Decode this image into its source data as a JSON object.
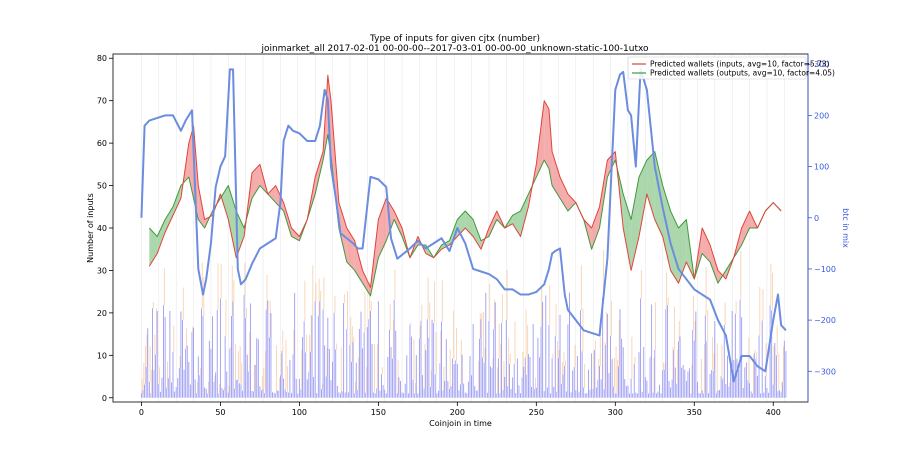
{
  "chart_data": {
    "type": "line",
    "title": "Type of inputs for given cjtx (number)",
    "subtitle": "joinmarket_all 2017-02-01 00-00-00--2017-03-01 00-00-00_unknown-static-100-1utxo",
    "xlabel": "Coinjoin in time",
    "ylabel": "Number of inputs",
    "ylabel_right": "btc in mix",
    "xlim": [
      -18,
      422
    ],
    "ylim": [
      -1,
      81
    ],
    "ylim_right": [
      -360,
      320
    ],
    "xticks": [
      0,
      50,
      100,
      150,
      200,
      250,
      300,
      350,
      400
    ],
    "yticks": [
      0,
      10,
      20,
      30,
      40,
      50,
      60,
      70,
      80
    ],
    "yticks_right": [
      -300,
      -200,
      -100,
      0,
      100,
      200,
      300
    ],
    "legend_position": "top-right",
    "colors": {
      "inputs": "#e0443a",
      "outputs": "#3e9a3e",
      "btc": "#6c8ce0",
      "bars_main": "#7b7bf0",
      "bars_secondary": "#f5c8a0"
    },
    "series": [
      {
        "name": "Predicted wallets (inputs, avg=10, factor=5.73)",
        "kind": "filled-line",
        "x": [
          5,
          10,
          15,
          20,
          25,
          30,
          33,
          36,
          40,
          45,
          50,
          55,
          60,
          65,
          70,
          75,
          80,
          85,
          90,
          95,
          100,
          105,
          110,
          115,
          118,
          120,
          125,
          130,
          135,
          140,
          145,
          150,
          155,
          160,
          165,
          170,
          175,
          180,
          185,
          190,
          195,
          200,
          205,
          210,
          215,
          220,
          225,
          230,
          235,
          240,
          245,
          250,
          255,
          258,
          260,
          265,
          270,
          275,
          280,
          285,
          290,
          295,
          300,
          305,
          310,
          315,
          320,
          325,
          330,
          335,
          340,
          345,
          350,
          355,
          360,
          365,
          370,
          375,
          380,
          385,
          390,
          395,
          400,
          405
        ],
        "y": [
          31,
          34,
          39,
          43,
          47,
          60,
          64,
          50,
          42,
          43,
          48,
          42,
          33,
          38,
          53,
          55,
          48,
          50,
          46,
          40,
          38,
          42,
          52,
          58,
          76,
          70,
          46,
          40,
          37,
          30,
          26,
          42,
          47,
          44,
          40,
          33,
          38,
          34,
          33,
          35,
          36,
          38,
          40,
          38,
          35,
          40,
          44,
          40,
          41,
          38,
          45,
          55,
          70,
          68,
          58,
          52,
          48,
          46,
          42,
          40,
          45,
          56,
          58,
          40,
          30,
          38,
          48,
          42,
          38,
          30,
          27,
          32,
          28,
          40,
          36,
          30,
          28,
          33,
          40,
          44,
          40,
          44,
          46,
          44
        ]
      },
      {
        "name": "Predicted wallets (outputs, avg=10, factor=4.05)",
        "kind": "filled-line",
        "x": [
          5,
          10,
          15,
          20,
          25,
          30,
          33,
          36,
          40,
          45,
          50,
          55,
          60,
          65,
          70,
          75,
          80,
          85,
          90,
          95,
          100,
          105,
          110,
          115,
          118,
          120,
          125,
          130,
          135,
          140,
          145,
          150,
          155,
          160,
          165,
          170,
          175,
          180,
          185,
          190,
          195,
          200,
          205,
          210,
          215,
          220,
          225,
          230,
          235,
          240,
          245,
          250,
          255,
          258,
          260,
          265,
          270,
          275,
          280,
          285,
          290,
          295,
          300,
          305,
          310,
          315,
          320,
          325,
          330,
          335,
          340,
          345,
          350,
          355,
          360,
          365,
          370,
          375,
          380,
          385,
          390,
          395,
          400,
          405
        ],
        "y": [
          40,
          38,
          42,
          45,
          50,
          52,
          47,
          42,
          40,
          44,
          47,
          50,
          44,
          40,
          47,
          50,
          48,
          46,
          44,
          38,
          37,
          42,
          48,
          56,
          62,
          57,
          40,
          32,
          30,
          27,
          24,
          33,
          37,
          42,
          38,
          33,
          36,
          36,
          33,
          36,
          37,
          42,
          44,
          42,
          37,
          38,
          42,
          40,
          43,
          44,
          48,
          52,
          56,
          54,
          50,
          47,
          44,
          46,
          42,
          35,
          40,
          52,
          56,
          48,
          42,
          52,
          56,
          58,
          50,
          44,
          40,
          42,
          28,
          34,
          32,
          27,
          30,
          33,
          36,
          40,
          40,
          44,
          46,
          44
        ]
      },
      {
        "name": "btc in mix",
        "kind": "line-right-axis",
        "x": [
          0,
          2,
          5,
          10,
          15,
          20,
          25,
          28,
          32,
          36,
          39,
          41,
          44,
          47,
          50,
          53,
          56,
          58,
          61,
          63,
          66,
          70,
          75,
          80,
          85,
          88,
          90,
          93,
          96,
          100,
          105,
          110,
          113,
          116,
          118,
          120,
          123,
          126,
          130,
          134,
          137,
          140,
          145,
          150,
          155,
          158,
          162,
          166,
          170,
          175,
          180,
          185,
          190,
          195,
          200,
          205,
          210,
          215,
          220,
          225,
          230,
          235,
          240,
          245,
          250,
          255,
          258,
          260,
          262,
          265,
          268,
          270,
          275,
          280,
          285,
          290,
          295,
          300,
          303,
          305,
          308,
          310,
          313,
          316,
          320,
          325,
          330,
          335,
          340,
          345,
          350,
          355,
          360,
          365,
          370,
          375,
          380,
          385,
          390,
          395,
          400,
          403,
          405,
          408
        ],
        "y": [
          0,
          180,
          190,
          195,
          200,
          200,
          170,
          190,
          210,
          -100,
          -150,
          -120,
          -50,
          60,
          100,
          120,
          290,
          290,
          -100,
          -130,
          -120,
          -90,
          -60,
          -50,
          -40,
          30,
          150,
          180,
          170,
          165,
          150,
          150,
          180,
          250,
          230,
          100,
          40,
          -30,
          -40,
          -50,
          -60,
          -60,
          80,
          75,
          60,
          -40,
          -80,
          -70,
          -60,
          -45,
          -60,
          -50,
          -40,
          -65,
          -20,
          -50,
          -100,
          -105,
          -110,
          -120,
          -140,
          -140,
          -150,
          -150,
          -145,
          -130,
          -100,
          -70,
          -65,
          -60,
          -150,
          -180,
          -200,
          -220,
          -225,
          -230,
          -80,
          250,
          280,
          285,
          210,
          200,
          100,
          290,
          250,
          100,
          20,
          -50,
          -100,
          -120,
          -140,
          -150,
          -160,
          -200,
          -230,
          -320,
          -270,
          -270,
          -290,
          -300,
          -200,
          -150,
          -210,
          -220
        ]
      }
    ]
  }
}
